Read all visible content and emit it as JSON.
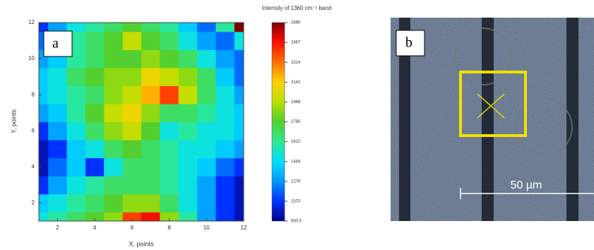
{
  "chart_data": {
    "type": "heatmap",
    "title": "Intensity of 1360 cm⁻¹ band",
    "x_label": "X, points",
    "y_label": "Y, points",
    "annotations": [
      "a"
    ],
    "x": [
      1,
      2,
      3,
      4,
      5,
      6,
      7,
      8,
      9,
      10,
      11,
      12
    ],
    "y": [
      1,
      2,
      3,
      4,
      5,
      6,
      7,
      8,
      9,
      10,
      11,
      12
    ],
    "z": [
      [
        1500,
        1600,
        1700,
        1800,
        1900,
        2400,
        2500,
        1900,
        1600,
        1300,
        1100,
        1000
      ],
      [
        1400,
        1500,
        1600,
        1700,
        1800,
        1900,
        1900,
        1700,
        1500,
        1300,
        1100,
        1000
      ],
      [
        1100,
        1300,
        1500,
        1600,
        1700,
        1700,
        1700,
        1600,
        1500,
        1300,
        1100,
        1000
      ],
      [
        1000,
        1200,
        1400,
        1100,
        1500,
        1700,
        1700,
        1600,
        1500,
        1400,
        1200,
        1100
      ],
      [
        1000,
        1100,
        1400,
        1500,
        1700,
        1800,
        1700,
        1600,
        1500,
        1500,
        1400,
        1300
      ],
      [
        1100,
        1300,
        1500,
        1700,
        1900,
        2000,
        1800,
        1500,
        1600,
        1500,
        1500,
        1400
      ],
      [
        1300,
        1400,
        1600,
        1800,
        2000,
        2100,
        1900,
        1700,
        1700,
        1600,
        1500,
        1400
      ],
      [
        1400,
        1500,
        1600,
        1700,
        1900,
        2000,
        2200,
        2400,
        2000,
        1700,
        1500,
        1300
      ],
      [
        1400,
        1500,
        1700,
        1800,
        1900,
        1900,
        2100,
        2000,
        1900,
        1700,
        1400,
        1200
      ],
      [
        1300,
        1400,
        1600,
        1700,
        1800,
        1800,
        1900,
        1800,
        1700,
        1500,
        1300,
        1200
      ],
      [
        1200,
        1400,
        1600,
        1700,
        1800,
        2000,
        1800,
        1700,
        1500,
        1300,
        1200,
        1500
      ],
      [
        1100,
        1300,
        1500,
        1600,
        1700,
        1800,
        1700,
        1600,
        1400,
        1200,
        1600,
        2660
      ]
    ],
    "xlim": [
      1,
      12
    ],
    "ylim": [
      1,
      12
    ],
    "xticks": [
      2,
      4,
      6,
      8,
      10,
      12
    ],
    "yticks": [
      2,
      4,
      6,
      8,
      10,
      12
    ],
    "zlim": [
      930.5,
      2660
    ],
    "zticks": [
      930.5,
      1103,
      1276,
      1449,
      1622,
      1795,
      1968,
      2141,
      2314,
      2487,
      2660
    ],
    "colormap": [
      "#00008b",
      "#0033ff",
      "#0099ff",
      "#00e0ff",
      "#30e890",
      "#50d030",
      "#b8e000",
      "#ffd000",
      "#ff7000",
      "#ff1000",
      "#800000"
    ]
  },
  "image_panel": {
    "label": "b",
    "scale_bar_label": "50 µm"
  }
}
